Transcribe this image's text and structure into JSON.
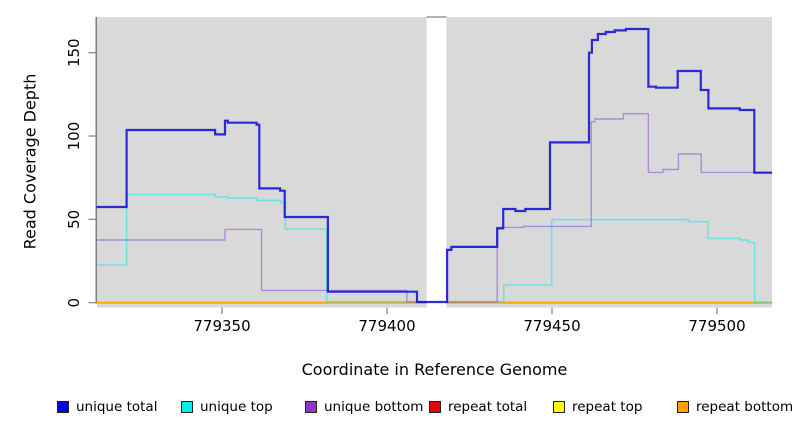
{
  "figure": {
    "background": "#ffffff",
    "plot_bg": "#d9d9d9",
    "axis_line_color": "#606060",
    "tick_color": "#808080"
  },
  "y_axis": {
    "label": "Read Coverage Depth",
    "ticks": [
      {
        "label": "0",
        "value": 0
      },
      {
        "label": "50",
        "value": 50
      },
      {
        "label": "100",
        "value": 100
      },
      {
        "label": "150",
        "value": 150
      }
    ]
  },
  "x_axis": {
    "label": "Coordinate in Reference Genome",
    "ticks": [
      {
        "label": "779350",
        "value": 779350
      },
      {
        "label": "779400",
        "value": 779400
      },
      {
        "label": "779450",
        "value": 779450
      },
      {
        "label": "779500",
        "value": 779500
      }
    ]
  },
  "legend": {
    "items": [
      {
        "label": "unique total",
        "color": "#0000ee"
      },
      {
        "label": "unique top",
        "color": "#00eeee"
      },
      {
        "label": "unique bottom",
        "color": "#9932cc"
      },
      {
        "label": "repeat total",
        "color": "#ee0000"
      },
      {
        "label": "repeat top",
        "color": "#ffff00"
      },
      {
        "label": "repeat bottom",
        "color": "#ffa000"
      }
    ]
  },
  "chart_data": {
    "type": "line",
    "subtype": "step-coverage",
    "x_range": [
      779312,
      779516.7
    ],
    "y_range": [
      0,
      165
    ],
    "grid": false,
    "gap_mask": {
      "x_start": 779412,
      "x_end": 779418
    },
    "series": [
      {
        "name": "repeat total",
        "stroke": "#dd0000",
        "width": 1.5,
        "above_mask": false,
        "points": [
          [
            779312,
            0
          ],
          [
            779516.7,
            0
          ]
        ]
      },
      {
        "name": "repeat top",
        "stroke": "#ffff00",
        "width": 1.5,
        "above_mask": false,
        "points": [
          [
            779312,
            0
          ],
          [
            779516.7,
            0
          ]
        ]
      },
      {
        "name": "repeat bottom",
        "stroke": "#ffa000",
        "width": 1.8,
        "above_mask": false,
        "points": [
          [
            779312,
            0
          ],
          [
            779516.7,
            0
          ]
        ]
      },
      {
        "name": "unique top",
        "stroke": "rgba(0,238,238,0.5)",
        "width": 1.6,
        "above_mask": false,
        "points": [
          [
            779312,
            22.6
          ],
          [
            779321.1,
            22.6
          ],
          [
            779321.1,
            65
          ],
          [
            779347.9,
            65
          ],
          [
            779347.9,
            63.5
          ],
          [
            779351.8,
            63.5
          ],
          [
            779351.8,
            62.8
          ],
          [
            779360.6,
            62.8
          ],
          [
            779360.6,
            61.4
          ],
          [
            779367.9,
            61.4
          ],
          [
            779367.9,
            60
          ],
          [
            779369.2,
            60
          ],
          [
            779369.2,
            44.2
          ],
          [
            779381.7,
            44.2
          ],
          [
            779381.7,
            0.6
          ],
          [
            779435.4,
            0.6
          ],
          [
            779435.4,
            10.6
          ],
          [
            779449.9,
            10.6
          ],
          [
            779449.9,
            49.8
          ],
          [
            779491.3,
            49.8
          ],
          [
            779491.3,
            48.6
          ],
          [
            779497.2,
            48.6
          ],
          [
            779497.2,
            38.6
          ],
          [
            779507,
            38.6
          ],
          [
            779507,
            37.7
          ],
          [
            779509.5,
            37.7
          ],
          [
            779509.5,
            36.2
          ],
          [
            779511.4,
            36.2
          ],
          [
            779511.4,
            0.3
          ],
          [
            779516.7,
            0.3
          ]
        ]
      },
      {
        "name": "unique bottom",
        "stroke": "rgba(141,77,219,0.55)",
        "width": 1.4,
        "above_mask": false,
        "points": [
          [
            779312,
            37.6
          ],
          [
            779350.9,
            37.6
          ],
          [
            779350.9,
            44
          ],
          [
            779362,
            44
          ],
          [
            779362,
            7.4
          ],
          [
            779406,
            7.4
          ],
          [
            779406,
            0.5
          ],
          [
            779433.4,
            0.5
          ],
          [
            779433.4,
            45.2
          ],
          [
            779441.3,
            45.2
          ],
          [
            779441.3,
            45.8
          ],
          [
            779461.9,
            45.8
          ],
          [
            779461.9,
            108.6
          ],
          [
            779463,
            108.6
          ],
          [
            779463,
            110.2
          ],
          [
            779471.6,
            110.2
          ],
          [
            779471.6,
            113.4
          ],
          [
            779479.2,
            113.4
          ],
          [
            779479.2,
            78.2
          ],
          [
            779483.6,
            78.2
          ],
          [
            779483.6,
            79.9
          ],
          [
            779488.3,
            79.9
          ],
          [
            779488.3,
            89.2
          ],
          [
            779495.2,
            89.2
          ],
          [
            779495.2,
            78.2
          ],
          [
            779516.7,
            78.2
          ]
        ]
      },
      {
        "name": "unique total",
        "stroke": "rgba(16,16,214,0.88)",
        "width": 2.2,
        "above_mask": true,
        "points": [
          [
            779312,
            57.4
          ],
          [
            779321.1,
            57.4
          ],
          [
            779321.1,
            103.6
          ],
          [
            779347.9,
            103.6
          ],
          [
            779347.9,
            101
          ],
          [
            779350.9,
            101
          ],
          [
            779350.9,
            109.2
          ],
          [
            779351.8,
            109.2
          ],
          [
            779351.8,
            108
          ],
          [
            779360.5,
            108
          ],
          [
            779360.5,
            106.8
          ],
          [
            779361.3,
            106.8
          ],
          [
            779361.3,
            68.6
          ],
          [
            779367.6,
            68.6
          ],
          [
            779367.6,
            67.2
          ],
          [
            779369,
            67.2
          ],
          [
            779369,
            51.4
          ],
          [
            779382.1,
            51.4
          ],
          [
            779382.1,
            6.6
          ],
          [
            779409.1,
            6.6
          ],
          [
            779409.1,
            0.4
          ],
          [
            779418.2,
            0.4
          ],
          [
            779418.2,
            31.7
          ],
          [
            779419.5,
            31.7
          ],
          [
            779419.5,
            33.5
          ],
          [
            779433.4,
            33.5
          ],
          [
            779433.4,
            44.6
          ],
          [
            779435.2,
            44.6
          ],
          [
            779435.2,
            56.2
          ],
          [
            779438.9,
            56.2
          ],
          [
            779438.9,
            55
          ],
          [
            779441.9,
            55
          ],
          [
            779441.9,
            56.2
          ],
          [
            779449.4,
            56.2
          ],
          [
            779449.4,
            96.2
          ],
          [
            779461.2,
            96.2
          ],
          [
            779461.2,
            150
          ],
          [
            779462.1,
            150
          ],
          [
            779462.1,
            157.6
          ],
          [
            779463.9,
            157.6
          ],
          [
            779463.9,
            161.2
          ],
          [
            779466.3,
            161.2
          ],
          [
            779466.3,
            162.4
          ],
          [
            779469,
            162.4
          ],
          [
            779469,
            163.4
          ],
          [
            779472.4,
            163.4
          ],
          [
            779472.4,
            164.2
          ],
          [
            779479.2,
            164.2
          ],
          [
            779479.2,
            129.6
          ],
          [
            779481.5,
            129.6
          ],
          [
            779481.5,
            129
          ],
          [
            779488.1,
            129
          ],
          [
            779488.1,
            139
          ],
          [
            779495.1,
            139
          ],
          [
            779495.1,
            127.6
          ],
          [
            779497.4,
            127.6
          ],
          [
            779497.4,
            116.6
          ],
          [
            779506.9,
            116.6
          ],
          [
            779506.9,
            115.6
          ],
          [
            779511.3,
            115.6
          ],
          [
            779511.3,
            78
          ],
          [
            779516.7,
            78
          ]
        ]
      }
    ]
  }
}
